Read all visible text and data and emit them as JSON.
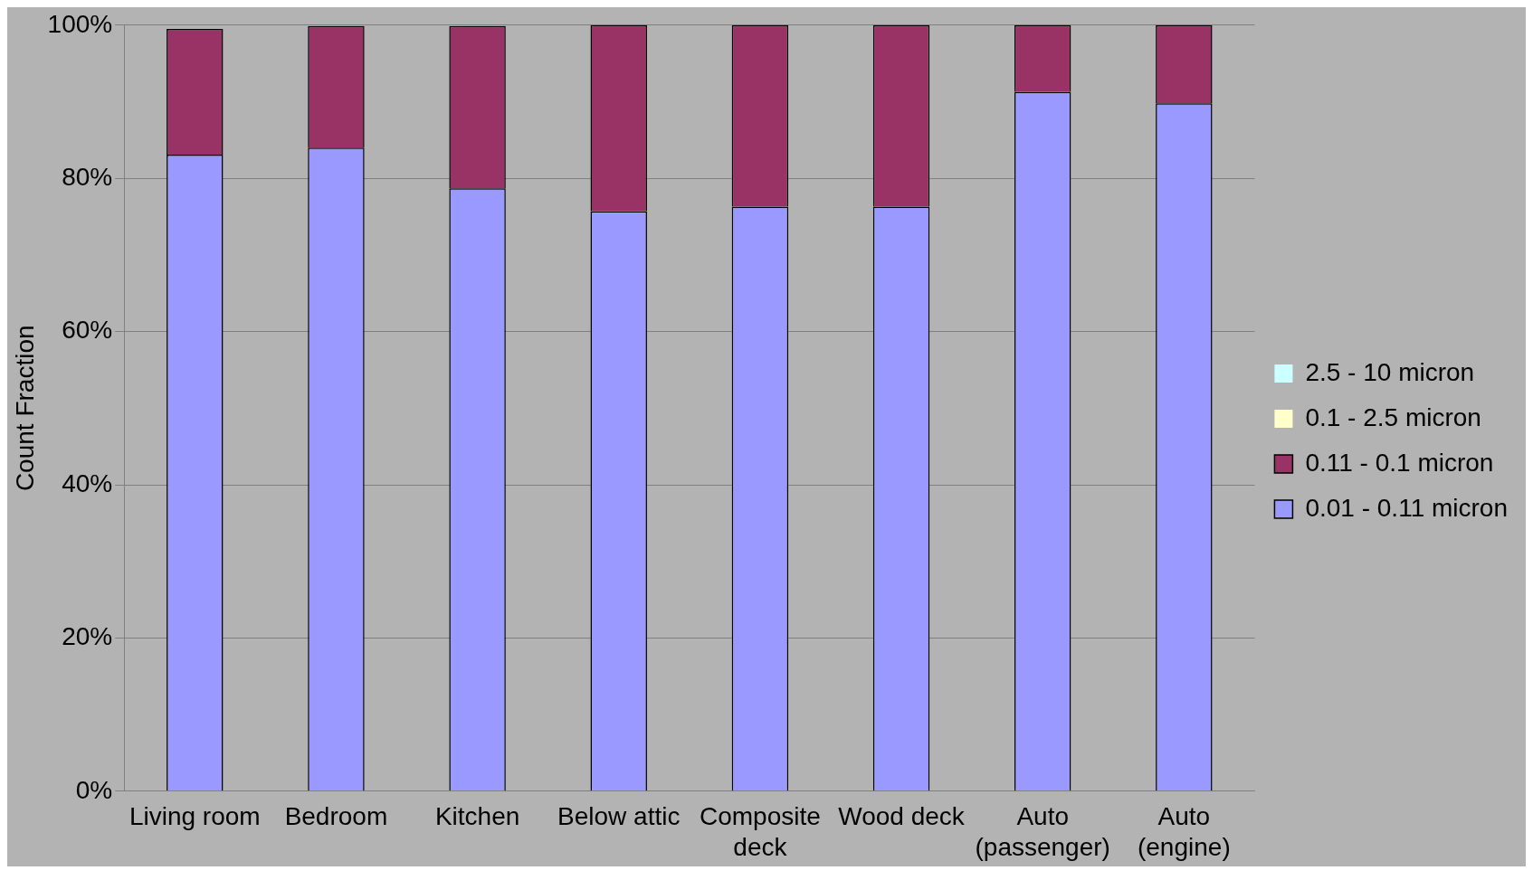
{
  "chart_data": {
    "type": "bar",
    "stacked": true,
    "ylabel": "Count Fraction",
    "categories": [
      "Living room",
      "Bedroom",
      "Kitchen",
      "Below attic",
      "Composite deck",
      "Wood deck",
      "Auto (passenger)",
      "Auto (engine)"
    ],
    "series": [
      {
        "name": "0.01 - 0.11 micron",
        "color": "#9999ff",
        "values": [
          83.1,
          84.0,
          78.7,
          75.7,
          76.3,
          76.3,
          91.3,
          89.8
        ]
      },
      {
        "name": "0.11 - 0.1 micron",
        "color": "#993366",
        "values": [
          16.4,
          15.9,
          21.2,
          24.3,
          23.7,
          23.7,
          8.7,
          10.2
        ]
      },
      {
        "name": "0.1 - 2.5 micron",
        "color": "#ffffcc",
        "values": [
          null,
          null,
          null,
          null,
          null,
          null,
          null,
          null
        ]
      },
      {
        "name": "2.5 - 10 micron",
        "color": "#ccffff",
        "values": [
          null,
          null,
          null,
          null,
          null,
          null,
          null,
          null
        ]
      }
    ],
    "ylim": [
      0,
      100
    ],
    "yticks": [
      {
        "value": 0,
        "label": "0%"
      },
      {
        "value": 20,
        "label": "20%"
      },
      {
        "value": 40,
        "label": "40%"
      },
      {
        "value": 60,
        "label": "60%"
      },
      {
        "value": 80,
        "label": "80%"
      },
      {
        "value": 100,
        "label": "100%"
      }
    ],
    "grid": "y",
    "legend": "right"
  }
}
